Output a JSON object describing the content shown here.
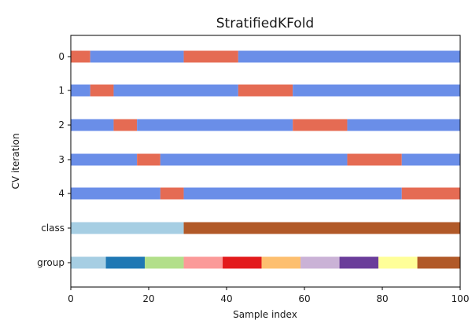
{
  "chart_data": {
    "type": "bar",
    "title": "StratifiedKFold",
    "xlabel": "Sample index",
    "ylabel": "CV iteration",
    "xlim": [
      0,
      100
    ],
    "xticks": [
      0,
      20,
      40,
      60,
      80,
      100
    ],
    "yticks": [
      "0",
      "1",
      "2",
      "3",
      "4",
      "class",
      "group"
    ],
    "grid": false,
    "legend": "none",
    "colors": {
      "training": "#6a8ee8",
      "testing": "#e56b53"
    },
    "cv_rows": [
      {
        "label": "0",
        "segments": [
          {
            "start": 0,
            "end": 5,
            "set": "testing"
          },
          {
            "start": 5,
            "end": 29,
            "set": "training"
          },
          {
            "start": 29,
            "end": 43,
            "set": "testing"
          },
          {
            "start": 43,
            "end": 100,
            "set": "training"
          }
        ]
      },
      {
        "label": "1",
        "segments": [
          {
            "start": 0,
            "end": 5,
            "set": "training"
          },
          {
            "start": 5,
            "end": 11,
            "set": "testing"
          },
          {
            "start": 11,
            "end": 43,
            "set": "training"
          },
          {
            "start": 43,
            "end": 57,
            "set": "testing"
          },
          {
            "start": 57,
            "end": 100,
            "set": "training"
          }
        ]
      },
      {
        "label": "2",
        "segments": [
          {
            "start": 0,
            "end": 11,
            "set": "training"
          },
          {
            "start": 11,
            "end": 17,
            "set": "testing"
          },
          {
            "start": 17,
            "end": 57,
            "set": "training"
          },
          {
            "start": 57,
            "end": 71,
            "set": "testing"
          },
          {
            "start": 71,
            "end": 100,
            "set": "training"
          }
        ]
      },
      {
        "label": "3",
        "segments": [
          {
            "start": 0,
            "end": 17,
            "set": "training"
          },
          {
            "start": 17,
            "end": 23,
            "set": "testing"
          },
          {
            "start": 23,
            "end": 71,
            "set": "training"
          },
          {
            "start": 71,
            "end": 85,
            "set": "testing"
          },
          {
            "start": 85,
            "end": 100,
            "set": "training"
          }
        ]
      },
      {
        "label": "4",
        "segments": [
          {
            "start": 0,
            "end": 23,
            "set": "training"
          },
          {
            "start": 23,
            "end": 29,
            "set": "testing"
          },
          {
            "start": 29,
            "end": 85,
            "set": "training"
          },
          {
            "start": 85,
            "end": 100,
            "set": "testing"
          }
        ]
      }
    ],
    "class_row": {
      "label": "class",
      "segments": [
        {
          "start": 0,
          "end": 29,
          "color": "#a6cee3"
        },
        {
          "start": 29,
          "end": 100,
          "color": "#b15928"
        }
      ]
    },
    "group_row": {
      "label": "group",
      "segments": [
        {
          "start": 0,
          "end": 9,
          "color": "#a6cee3"
        },
        {
          "start": 9,
          "end": 19,
          "color": "#1f78b4"
        },
        {
          "start": 19,
          "end": 29,
          "color": "#b2df8a"
        },
        {
          "start": 29,
          "end": 39,
          "color": "#fb9a99"
        },
        {
          "start": 39,
          "end": 49,
          "color": "#e31a1c"
        },
        {
          "start": 49,
          "end": 59,
          "color": "#fdbf6f"
        },
        {
          "start": 59,
          "end": 69,
          "color": "#cab2d6"
        },
        {
          "start": 69,
          "end": 79,
          "color": "#6a3d9a"
        },
        {
          "start": 79,
          "end": 89,
          "color": "#ffff99"
        },
        {
          "start": 89,
          "end": 100,
          "color": "#b15928"
        }
      ]
    }
  }
}
